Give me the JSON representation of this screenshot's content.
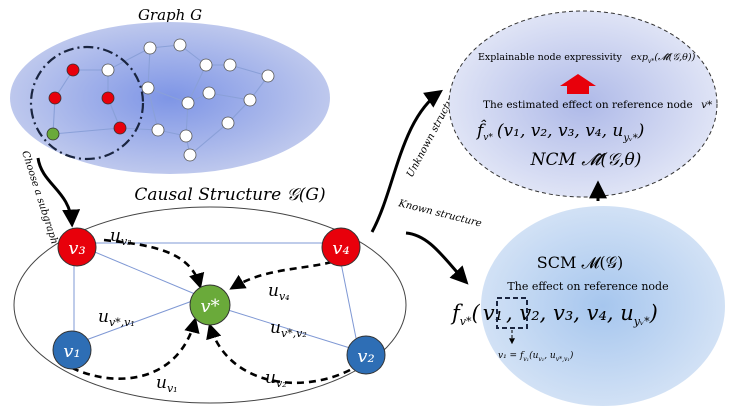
{
  "colors": {
    "red_node": "#e8000b",
    "green_node": "#6aaa3a",
    "blue_node": "#2e6eb5",
    "white_node": "#ffffff",
    "graph_edge": "#8aa0d8",
    "arrow": "#000000"
  },
  "graph": {
    "title": "Graph G",
    "subgraph_label": "Choose a subgraph"
  },
  "causal": {
    "title": "Causal Structure  𝒢(G)",
    "nodes": {
      "v3": "v₃",
      "v4": "v₄",
      "v1": "v₁",
      "v2": "v₂",
      "vstar": "v*"
    },
    "edge_labels": {
      "u_v3": "u",
      "u_v3_sub": "v₃",
      "u_v4": "u",
      "u_v4_sub": "v₄",
      "u_v1": "u",
      "u_v1_sub": "v₁",
      "u_v2": "u",
      "u_v2_sub": "v₂",
      "u_vs_v1": "u",
      "u_vs_v1_sub": "v*,v₁",
      "u_vs_v2": "u",
      "u_vs_v2_sub": "v*,v₂"
    }
  },
  "arrows": {
    "unknown": "Unknown structure",
    "known": "Known structure"
  },
  "ncm": {
    "expressivity_label": "Explainable node expressivity",
    "expressivity_formula": "exp",
    "expressivity_sub": "v*",
    "expressivity_arg": "(𝓜̂(𝒢,θ))",
    "estimated_label": "The estimated effect on reference node",
    "estimated_node": "v*",
    "estimated_formula": "f̂",
    "estimated_formula_sub": "v*",
    "estimated_args": "(v₁, v₂, v₃, v₄, u",
    "estimated_args_sub": "yᵥ*",
    "estimated_close": ")",
    "ncm_line": "NCM  𝓜̂(𝒢,θ)"
  },
  "scm": {
    "scm_line": "SCM  𝓜(𝒢)",
    "effect_label": "The effect on reference node",
    "formula_f": "f",
    "formula_f_sub": "v*",
    "formula_open": "(",
    "formula_v1": "v₁",
    "formula_rest": ", v₂, v₃, v₄, u",
    "formula_rest_sub": "yᵥ*",
    "formula_close": ")",
    "v1_eq": "v₁ = f",
    "v1_eq_sub": "v₁",
    "v1_eq_args": "(u",
    "v1_eq_arg1_sub": "v₁",
    "v1_eq_mid": ", u",
    "v1_eq_arg2_sub": "v*,v₁",
    "v1_eq_close": ")"
  }
}
